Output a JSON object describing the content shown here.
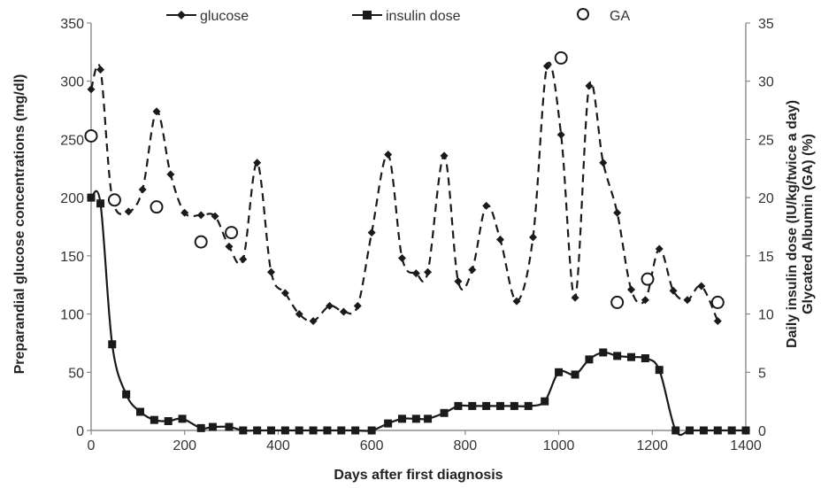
{
  "chart_data": {
    "type": "line",
    "xlabel": "Days after first diagnosis",
    "ylabel_left": "Preparandial glucose concentrations (mg/dl)",
    "ylabel_right_line1": "Daily insulin dose (IU/kg/twice a day)",
    "ylabel_right_line2": "Glycated Albumin (GA) (%)",
    "xlim": [
      0,
      1400
    ],
    "x_ticks": [
      "0",
      "200",
      "400",
      "600",
      "800",
      "1000",
      "1200",
      "1400"
    ],
    "ylim_left": [
      0,
      350
    ],
    "y_left_ticks": [
      "0",
      "50",
      "100",
      "150",
      "200",
      "250",
      "300",
      "350"
    ],
    "ylim_right": [
      0,
      35
    ],
    "y_right_ticks": [
      "0",
      "5",
      "10",
      "15",
      "20",
      "25",
      "30",
      "35"
    ],
    "grid": false,
    "legend_position": "top",
    "series": [
      {
        "name": "glucose",
        "axis": "left",
        "marker": "diamond",
        "line": "dashed",
        "x": [
          0,
          20,
          45,
          80,
          110,
          140,
          170,
          200,
          235,
          265,
          295,
          325,
          355,
          385,
          415,
          445,
          475,
          510,
          540,
          570,
          600,
          635,
          665,
          695,
          720,
          755,
          785,
          815,
          845,
          875,
          910,
          945,
          975,
          1005,
          1035,
          1065,
          1095,
          1125,
          1155,
          1185,
          1215,
          1245,
          1275,
          1305,
          1340
        ],
        "y": [
          293,
          310,
          200,
          188,
          207,
          274,
          220,
          187,
          185,
          184,
          158,
          147,
          230,
          136,
          118,
          100,
          94,
          107,
          102,
          107,
          170,
          237,
          148,
          135,
          136,
          236,
          128,
          138,
          193,
          164,
          111,
          166,
          313,
          254,
          114,
          296,
          230,
          187,
          121,
          112,
          156,
          120,
          112,
          124,
          94
        ]
      },
      {
        "name": "insulin dose",
        "axis": "right",
        "marker": "square",
        "line": "solid",
        "x": [
          0,
          20,
          45,
          75,
          105,
          135,
          165,
          195,
          235,
          260,
          295,
          325,
          355,
          385,
          415,
          445,
          475,
          505,
          535,
          565,
          600,
          635,
          665,
          695,
          720,
          755,
          785,
          815,
          845,
          875,
          905,
          935,
          970,
          1000,
          1035,
          1065,
          1095,
          1125,
          1155,
          1185,
          1215,
          1250,
          1280,
          1310,
          1340,
          1370,
          1400
        ],
        "y": [
          20,
          19.5,
          7.4,
          3.1,
          1.6,
          0.9,
          0.8,
          1.0,
          0.2,
          0.3,
          0.3,
          0,
          0,
          0,
          0,
          0,
          0,
          0,
          0,
          0,
          0,
          0.6,
          1.0,
          1.0,
          1.0,
          1.5,
          2.1,
          2.1,
          2.1,
          2.1,
          2.1,
          2.1,
          2.5,
          5.0,
          4.8,
          6.1,
          6.7,
          6.4,
          6.3,
          6.2,
          5.2,
          0,
          0,
          0,
          0,
          0,
          0
        ]
      },
      {
        "name": "GA",
        "axis": "right",
        "marker": "open-circle",
        "line": "none",
        "x": [
          0,
          50,
          140,
          235,
          300,
          1005,
          1125,
          1190,
          1340
        ],
        "y": [
          25.3,
          19.8,
          19.2,
          16.2,
          17.0,
          32.0,
          11.0,
          13.0,
          11.0
        ]
      }
    ]
  },
  "colors": {
    "series": "#1a1a1a",
    "axis": "#777777",
    "text": "#333333"
  }
}
